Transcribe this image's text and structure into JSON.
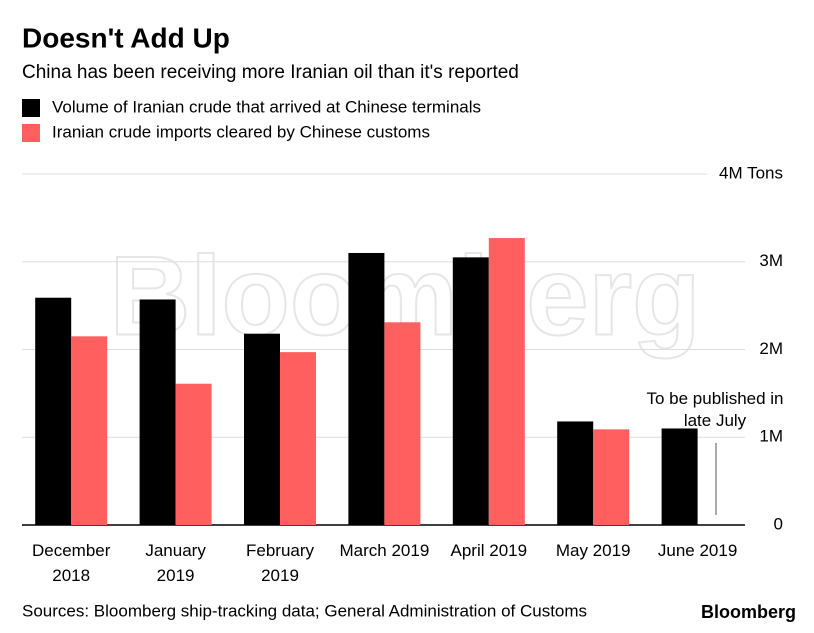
{
  "chart_data": {
    "type": "bar",
    "title": "Doesn't Add Up",
    "subtitle": "China has been receiving more Iranian oil than it's reported",
    "categories": [
      "December 2018",
      "January 2019",
      "February 2019",
      "March 2019",
      "April 2019",
      "May 2019",
      "June 2019"
    ],
    "series": [
      {
        "name": "Volume of Iranian crude that arrived at Chinese terminals",
        "color": "#000000",
        "values": [
          2.59,
          2.57,
          2.18,
          3.1,
          3.05,
          1.18,
          1.1
        ]
      },
      {
        "name": "Iranian crude imports cleared by Chinese customs",
        "color": "#ff5f5f",
        "values": [
          2.15,
          1.61,
          1.97,
          2.31,
          3.27,
          1.09,
          null
        ]
      }
    ],
    "ylim": [
      0,
      4
    ],
    "yticks": [
      0,
      {
        "value": 1,
        "label": "1M"
      },
      {
        "value": 2,
        "label": "2M"
      },
      {
        "value": 3,
        "label": "3M"
      },
      {
        "value": 4,
        "label": "4M Tons"
      }
    ],
    "grid": true,
    "annotation": "To be published in late July",
    "source": "Sources: Bloomberg ship-tracking data; General Administration of Customs",
    "logo": "Bloomberg",
    "watermark": "Bloomberg"
  }
}
